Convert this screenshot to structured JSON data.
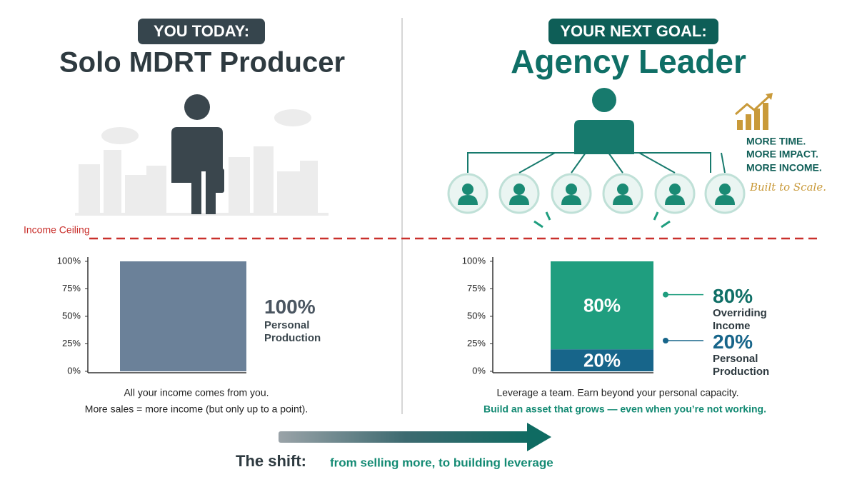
{
  "left": {
    "badge": "YOU TODAY:",
    "title": "Solo MDRT Producer",
    "caption": [
      "All your income comes from you.",
      "More sales = more income (but only up to a point)."
    ]
  },
  "right": {
    "badge": "YOUR NEXT GOAL:",
    "title": "Agency Leader",
    "benefits": [
      "MORE TIME.",
      "MORE IMPACT.",
      "MORE INCOME."
    ],
    "tagline": "Built to Scale.",
    "caption": [
      "Leverage a team. Earn beyond your personal capacity.",
      "Build an asset that grows — even when you’re not working."
    ]
  },
  "ceiling_label": "Income Ceiling",
  "shift": {
    "label": "The shift:",
    "text": "from selling more, to building leverage"
  },
  "chart_data": [
    {
      "type": "bar",
      "categories": [
        null
      ],
      "series": [
        {
          "name": "Personal Production",
          "color": "#6b8199",
          "values": [
            100
          ],
          "value_labels": [
            "100%"
          ]
        }
      ],
      "ylim": [
        0,
        100
      ],
      "yticks": [
        {
          "value": 0,
          "label": "0%"
        },
        {
          "value": 25,
          "label": "25%"
        },
        {
          "value": 50,
          "label": "50%"
        },
        {
          "value": 75,
          "label": "75%"
        },
        {
          "value": 100,
          "label": "100%"
        }
      ]
    },
    {
      "type": "stacked_bar",
      "categories": [
        null
      ],
      "series": [
        {
          "name": "Personal Production",
          "color": "#17658a",
          "values": [
            20
          ],
          "value_labels": [
            "20%"
          ]
        },
        {
          "name": "Overriding Income",
          "color": "#1f9e7f",
          "values": [
            80
          ],
          "value_labels": [
            "80%"
          ]
        }
      ],
      "ylim": [
        0,
        100
      ],
      "yticks": [
        {
          "value": 0,
          "label": "0%"
        },
        {
          "value": 25,
          "label": "25%"
        },
        {
          "value": 50,
          "label": "50%"
        },
        {
          "value": 75,
          "label": "75%"
        },
        {
          "value": 100,
          "label": "100%"
        }
      ]
    }
  ]
}
